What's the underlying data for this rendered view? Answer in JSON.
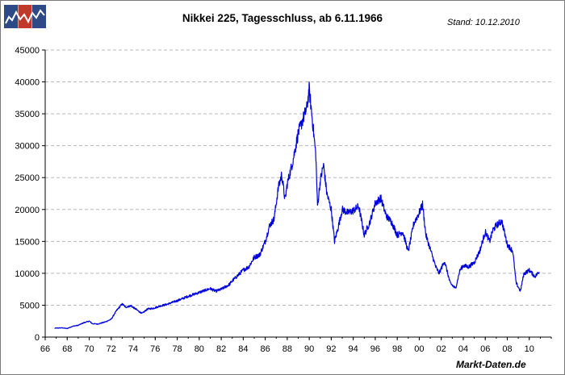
{
  "header": {
    "title": "Nikkei 225, Tagesschluss, ab 6.11.1966",
    "stand": "Stand: 10.12.2010"
  },
  "footer": {
    "source": "Markt-Daten.de"
  },
  "colors": {
    "line": "#0000dd",
    "grid": "#b8b8b8",
    "logo_dark": "#2e4a86",
    "logo_red": "#c0392b"
  },
  "chart_data": {
    "type": "line",
    "title": "Nikkei 225, Tagesschluss, ab 6.11.1966",
    "xlabel": "",
    "ylabel": "",
    "xlim": [
      1966,
      2012
    ],
    "ylim": [
      0,
      45000
    ],
    "grid": "horizontal-dashed",
    "legend": "none",
    "x_tick_labels": [
      "66",
      "68",
      "70",
      "72",
      "74",
      "76",
      "78",
      "80",
      "82",
      "84",
      "86",
      "88",
      "90",
      "92",
      "94",
      "96",
      "98",
      "00",
      "02",
      "04",
      "06",
      "08",
      "10"
    ],
    "y_tick_labels": [
      "0",
      "5000",
      "10000",
      "15000",
      "20000",
      "25000",
      "30000",
      "35000",
      "40000",
      "45000"
    ],
    "series": [
      {
        "x": [
          1966.85,
          1967.5,
          1968.0,
          1968.5,
          1969.0,
          1969.5,
          1970.0,
          1970.3,
          1970.8,
          1971.5,
          1972.0,
          1972.5,
          1973.0,
          1973.3,
          1973.8,
          1974.3,
          1974.8,
          1975.3,
          1975.8,
          1976.5,
          1977.0,
          1978.0,
          1979.0,
          1980.0,
          1981.0,
          1981.5,
          1982.0,
          1982.7,
          1983.0,
          1984.0,
          1984.5,
          1985.0,
          1985.5,
          1986.0,
          1986.4,
          1986.8,
          1987.2,
          1987.5,
          1987.8,
          1988.0,
          1988.5,
          1989.0,
          1989.5,
          1989.8,
          1989.99,
          1990.2,
          1990.4,
          1990.6,
          1990.75,
          1991.0,
          1991.3,
          1991.6,
          1992.0,
          1992.3,
          1992.6,
          1993.0,
          1993.5,
          1994.0,
          1994.5,
          1995.0,
          1995.5,
          1996.0,
          1996.5,
          1997.0,
          1997.5,
          1998.0,
          1998.5,
          1999.0,
          1999.5,
          2000.0,
          2000.3,
          2000.6,
          2001.0,
          2001.5,
          2001.8,
          2002.3,
          2002.8,
          2003.3,
          2003.7,
          2004.0,
          2004.5,
          2005.0,
          2005.5,
          2006.0,
          2006.4,
          2006.7,
          2007.0,
          2007.5,
          2008.0,
          2008.5,
          2008.8,
          2009.2,
          2009.5,
          2010.0,
          2010.5,
          2010.9
        ],
        "y": [
          1400,
          1450,
          1350,
          1700,
          1850,
          2250,
          2500,
          2100,
          2050,
          2400,
          2800,
          4200,
          5200,
          4700,
          4900,
          4300,
          3700,
          4400,
          4500,
          4900,
          5100,
          5700,
          6400,
          7000,
          7600,
          7200,
          7500,
          8200,
          8800,
          10500,
          11000,
          12500,
          12900,
          15000,
          17500,
          18500,
          23500,
          25500,
          21500,
          24000,
          27500,
          32000,
          34500,
          36000,
          38900,
          35500,
          32000,
          28500,
          20500,
          24500,
          27000,
          22500,
          20000,
          15000,
          17000,
          20000,
          19500,
          19800,
          20500,
          16000,
          18000,
          21000,
          21800,
          19000,
          18000,
          16000,
          16500,
          13400,
          17800,
          19500,
          20800,
          16000,
          13800,
          11000,
          10000,
          11900,
          8500,
          7600,
          10500,
          11200,
          11000,
          11700,
          13500,
          16500,
          15000,
          16800,
          17500,
          18200,
          14500,
          13500,
          8500,
          7200,
          9900,
          10500,
          9500,
          10200
        ]
      }
    ]
  }
}
